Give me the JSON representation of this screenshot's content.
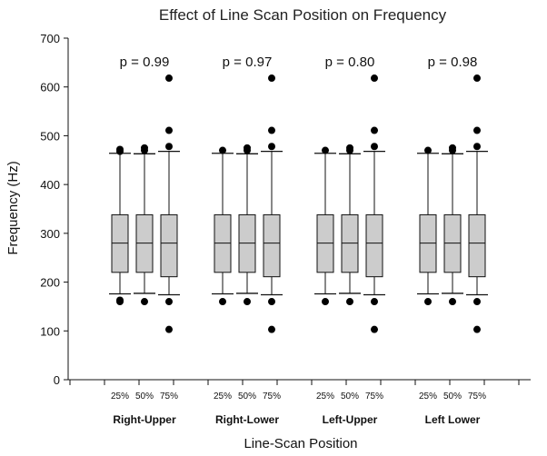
{
  "chart_data": {
    "type": "box",
    "title": "Effect of Line Scan Position on Frequency",
    "xlabel": "Line-Scan Position",
    "ylabel": "Frequency (Hz)",
    "ylim": [
      0,
      700
    ],
    "yticks": [
      0,
      100,
      200,
      300,
      400,
      500,
      600,
      700
    ],
    "grid": false,
    "groups": [
      {
        "name": "Right-Upper",
        "p_value": "p = 0.99",
        "boxes": [
          {
            "label": "25%",
            "q1": 220,
            "median": 280,
            "q3": 338,
            "whisker_low": 176,
            "whisker_high": 464,
            "outliers": [
              160,
              163,
              468,
              472
            ]
          },
          {
            "label": "50%",
            "q1": 220,
            "median": 280,
            "q3": 338,
            "whisker_low": 177,
            "whisker_high": 463,
            "outliers": [
              160,
              470,
              475
            ]
          },
          {
            "label": "75%",
            "q1": 211,
            "median": 280,
            "q3": 338,
            "whisker_low": 174,
            "whisker_high": 468,
            "outliers": [
              103,
              160,
              478,
              511,
              618
            ]
          }
        ]
      },
      {
        "name": "Right-Lower",
        "p_value": "p = 0.97",
        "boxes": [
          {
            "label": "25%",
            "q1": 220,
            "median": 280,
            "q3": 338,
            "whisker_low": 176,
            "whisker_high": 464,
            "outliers": [
              160,
              470
            ]
          },
          {
            "label": "50%",
            "q1": 220,
            "median": 280,
            "q3": 338,
            "whisker_low": 177,
            "whisker_high": 463,
            "outliers": [
              160,
              470,
              475
            ]
          },
          {
            "label": "75%",
            "q1": 211,
            "median": 280,
            "q3": 338,
            "whisker_low": 174,
            "whisker_high": 468,
            "outliers": [
              103,
              160,
              478,
              511,
              618
            ]
          }
        ]
      },
      {
        "name": "Left-Upper",
        "p_value": "p = 0.80",
        "boxes": [
          {
            "label": "25%",
            "q1": 220,
            "median": 280,
            "q3": 338,
            "whisker_low": 176,
            "whisker_high": 464,
            "outliers": [
              160,
              470
            ]
          },
          {
            "label": "50%",
            "q1": 220,
            "median": 280,
            "q3": 338,
            "whisker_low": 177,
            "whisker_high": 463,
            "outliers": [
              160,
              470,
              475
            ]
          },
          {
            "label": "75%",
            "q1": 211,
            "median": 280,
            "q3": 338,
            "whisker_low": 174,
            "whisker_high": 468,
            "outliers": [
              103,
              160,
              478,
              511,
              618
            ]
          }
        ]
      },
      {
        "name": "Left Lower",
        "p_value": "p = 0.98",
        "boxes": [
          {
            "label": "25%",
            "q1": 220,
            "median": 280,
            "q3": 338,
            "whisker_low": 176,
            "whisker_high": 464,
            "outliers": [
              160,
              470
            ]
          },
          {
            "label": "50%",
            "q1": 220,
            "median": 280,
            "q3": 338,
            "whisker_low": 177,
            "whisker_high": 463,
            "outliers": [
              160,
              470,
              475
            ]
          },
          {
            "label": "75%",
            "q1": 211,
            "median": 280,
            "q3": 338,
            "whisker_low": 174,
            "whisker_high": 468,
            "outliers": [
              103,
              160,
              478,
              511,
              618
            ]
          }
        ]
      }
    ]
  },
  "colors": {
    "box_fill": "#cccccc",
    "stroke": "#111111",
    "outlier": "#000000"
  }
}
